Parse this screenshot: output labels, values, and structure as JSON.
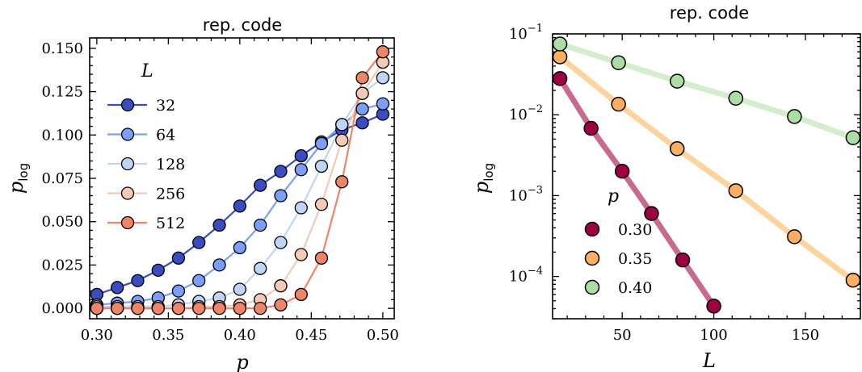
{
  "chart_data": [
    {
      "type": "line",
      "title": "rep. code",
      "xlabel": "p",
      "ylabel": "p",
      "ylabel_subscript": "log",
      "xlim": [
        0.295,
        0.508
      ],
      "ylim": [
        -0.006,
        0.156
      ],
      "xticks": [
        "0.30",
        "0.35",
        "0.40",
        "0.45",
        "0.50"
      ],
      "yticks": [
        "0.000",
        "0.025",
        "0.050",
        "0.075",
        "0.100",
        "0.125",
        "0.150"
      ],
      "legend_title": "L",
      "legend_position": "upper-left",
      "x": [
        0.3,
        0.3143,
        0.3286,
        0.3429,
        0.3571,
        0.3714,
        0.3857,
        0.4,
        0.4143,
        0.4286,
        0.4429,
        0.4571,
        0.4714,
        0.4857,
        0.5
      ],
      "series": [
        {
          "name": "32",
          "color": "#3b4cc0",
          "values": [
            0.008,
            0.012,
            0.016,
            0.022,
            0.029,
            0.038,
            0.048,
            0.059,
            0.071,
            0.079,
            0.088,
            0.096,
            0.103,
            0.107,
            0.112
          ]
        },
        {
          "name": "64",
          "color": "#7b9ff9",
          "values": [
            0.002,
            0.003,
            0.004,
            0.006,
            0.01,
            0.016,
            0.025,
            0.035,
            0.048,
            0.065,
            0.08,
            0.095,
            0.106,
            0.115,
            0.118
          ]
        },
        {
          "name": "128",
          "color": "#c0d4f5",
          "values": [
            0.001,
            0.001,
            0.001,
            0.001,
            0.002,
            0.004,
            0.006,
            0.011,
            0.023,
            0.038,
            0.058,
            0.082,
            0.106,
            0.124,
            0.133
          ]
        },
        {
          "name": "256",
          "color": "#f2cbb7",
          "values": [
            0.0,
            0.0,
            0.0,
            0.0,
            0.0,
            0.001,
            0.001,
            0.002,
            0.005,
            0.013,
            0.031,
            0.06,
            0.097,
            0.124,
            0.142
          ]
        },
        {
          "name": "512",
          "color": "#ee8468",
          "values": [
            0.0,
            0.0,
            0.0,
            0.0,
            0.0,
            0.0,
            0.0,
            0.0,
            0.0,
            0.002,
            0.008,
            0.029,
            0.073,
            0.133,
            0.148
          ]
        }
      ]
    },
    {
      "type": "line",
      "title": "rep. code",
      "xlabel": "L",
      "ylabel": "p",
      "ylabel_subscript": "log",
      "xlim": [
        12,
        180
      ],
      "ylim": [
        3e-05,
        0.1
      ],
      "yscale": "log",
      "xticks": [
        "50",
        "100",
        "150"
      ],
      "yticks": [
        {
          "base": "10",
          "exp": "−1",
          "value": 0.1
        },
        {
          "base": "10",
          "exp": "−2",
          "value": 0.01
        },
        {
          "base": "10",
          "exp": "−3",
          "value": 0.001
        },
        {
          "base": "10",
          "exp": "−4",
          "value": 0.0001
        }
      ],
      "legend_title": "p",
      "legend_position": "lower-left",
      "series": [
        {
          "name": "0.30",
          "color": "#9e0142",
          "line_color": "#c76a8e",
          "x": [
            16,
            33,
            50,
            66,
            83,
            100
          ],
          "values": [
            0.028,
            0.0068,
            0.002,
            0.0006,
            0.00016,
            4.3e-05
          ]
        },
        {
          "name": "0.35",
          "color": "#fdae61",
          "line_color": "#fdd49e",
          "x": [
            16,
            48,
            80,
            112,
            144,
            176
          ],
          "values": [
            0.052,
            0.0135,
            0.0038,
            0.00115,
            0.00031,
            9e-05
          ]
        },
        {
          "name": "0.40",
          "color": "#abdda4",
          "line_color": "#d4edcc",
          "x": [
            16,
            48,
            80,
            112,
            144,
            176
          ],
          "values": [
            0.075,
            0.044,
            0.026,
            0.016,
            0.0095,
            0.0052
          ]
        }
      ]
    }
  ]
}
